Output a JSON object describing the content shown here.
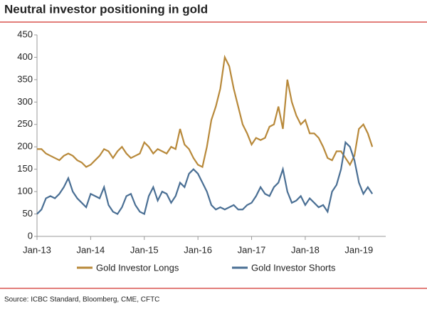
{
  "chart_data": {
    "type": "line",
    "title": "Neutral investor positioning in gold",
    "source": "Source: ICBC Standard, Bloomberg, CME, CFTC",
    "x": [
      "2013-01",
      "2013-02",
      "2013-03",
      "2013-04",
      "2013-05",
      "2013-06",
      "2013-07",
      "2013-08",
      "2013-09",
      "2013-10",
      "2013-11",
      "2013-12",
      "2014-01",
      "2014-02",
      "2014-03",
      "2014-04",
      "2014-05",
      "2014-06",
      "2014-07",
      "2014-08",
      "2014-09",
      "2014-10",
      "2014-11",
      "2014-12",
      "2015-01",
      "2015-02",
      "2015-03",
      "2015-04",
      "2015-05",
      "2015-06",
      "2015-07",
      "2015-08",
      "2015-09",
      "2015-10",
      "2015-11",
      "2015-12",
      "2016-01",
      "2016-02",
      "2016-03",
      "2016-04",
      "2016-05",
      "2016-06",
      "2016-07",
      "2016-08",
      "2016-09",
      "2016-10",
      "2016-11",
      "2016-12",
      "2017-01",
      "2017-02",
      "2017-03",
      "2017-04",
      "2017-05",
      "2017-06",
      "2017-07",
      "2017-08",
      "2017-09",
      "2017-10",
      "2017-11",
      "2017-12",
      "2018-01",
      "2018-02",
      "2018-03",
      "2018-04",
      "2018-05",
      "2018-06",
      "2018-07",
      "2018-08",
      "2018-09",
      "2018-10",
      "2018-11",
      "2018-12",
      "2019-01",
      "2019-02",
      "2019-03",
      "2019-04"
    ],
    "series": [
      {
        "name": "Gold Investor Longs",
        "color": "#b8893a",
        "values": [
          195,
          195,
          185,
          180,
          175,
          170,
          180,
          185,
          180,
          170,
          165,
          155,
          160,
          170,
          180,
          195,
          190,
          175,
          190,
          200,
          185,
          175,
          180,
          185,
          210,
          200,
          185,
          195,
          190,
          185,
          200,
          195,
          240,
          205,
          195,
          175,
          160,
          155,
          200,
          260,
          290,
          330,
          400,
          380,
          330,
          290,
          250,
          230,
          205,
          220,
          215,
          220,
          245,
          250,
          290,
          240,
          350,
          300,
          270,
          250,
          260,
          230,
          230,
          220,
          200,
          175,
          170,
          190,
          190,
          175,
          160,
          180,
          240,
          250,
          230,
          200
        ]
      },
      {
        "name": "Gold Investor Shorts",
        "color": "#4a6f94",
        "values": [
          50,
          60,
          85,
          90,
          85,
          95,
          110,
          130,
          100,
          85,
          75,
          65,
          95,
          90,
          85,
          110,
          70,
          55,
          50,
          65,
          90,
          95,
          70,
          55,
          50,
          90,
          110,
          80,
          100,
          95,
          75,
          90,
          120,
          110,
          140,
          150,
          140,
          120,
          100,
          70,
          60,
          65,
          60,
          65,
          70,
          60,
          60,
          70,
          75,
          90,
          110,
          95,
          90,
          110,
          120,
          150,
          100,
          75,
          80,
          90,
          70,
          85,
          75,
          65,
          70,
          55,
          100,
          115,
          150,
          210,
          200,
          170,
          120,
          95,
          110,
          95
        ]
      }
    ],
    "ylim": [
      0,
      450
    ],
    "yticks": [
      0,
      50,
      100,
      150,
      200,
      250,
      300,
      350,
      400,
      450
    ],
    "xlim": [
      "2013-01",
      "2019-07"
    ],
    "xticks": [
      {
        "value": "2013-01",
        "label": "Jan-13"
      },
      {
        "value": "2014-01",
        "label": "Jan-14"
      },
      {
        "value": "2015-01",
        "label": "Jan-15"
      },
      {
        "value": "2016-01",
        "label": "Jan-16"
      },
      {
        "value": "2017-01",
        "label": "Jan-17"
      },
      {
        "value": "2018-01",
        "label": "Jan-18"
      },
      {
        "value": "2019-01",
        "label": "Jan-19"
      }
    ]
  }
}
